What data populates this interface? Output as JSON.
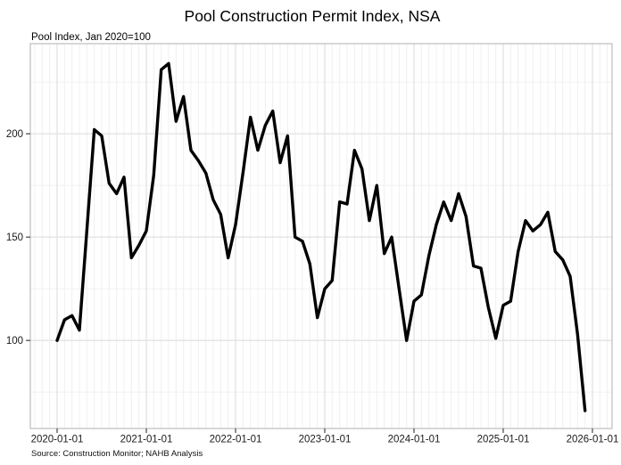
{
  "chart_data": {
    "type": "line",
    "title": "Pool Construction Permit Index, NSA",
    "subtitle": "Pool Index, Jan 2020=100",
    "source": "Source: Construction Monitor; NAHB Analysis",
    "frequency": "monthly",
    "line_color": "#000000",
    "grid": true,
    "legend_position": "none",
    "x": [
      "2020-01",
      "2020-02",
      "2020-03",
      "2020-04",
      "2020-05",
      "2020-06",
      "2020-07",
      "2020-08",
      "2020-09",
      "2020-10",
      "2020-11",
      "2020-12",
      "2021-01",
      "2021-02",
      "2021-03",
      "2021-04",
      "2021-05",
      "2021-06",
      "2021-07",
      "2021-08",
      "2021-09",
      "2021-10",
      "2021-11",
      "2021-12",
      "2022-01",
      "2022-02",
      "2022-03",
      "2022-04",
      "2022-05",
      "2022-06",
      "2022-07",
      "2022-08",
      "2022-09",
      "2022-10",
      "2022-11",
      "2022-12",
      "2023-01",
      "2023-02",
      "2023-03",
      "2023-04",
      "2023-05",
      "2023-06",
      "2023-07",
      "2023-08",
      "2023-09",
      "2023-10",
      "2023-11",
      "2023-12",
      "2024-01",
      "2024-02",
      "2024-03",
      "2024-04",
      "2024-05",
      "2024-06",
      "2024-07",
      "2024-08",
      "2024-09",
      "2024-10",
      "2024-11",
      "2024-12",
      "2025-01",
      "2025-02",
      "2025-03",
      "2025-04",
      "2025-05",
      "2025-06",
      "2025-07",
      "2025-08",
      "2025-09",
      "2025-10",
      "2025-11",
      "2025-12"
    ],
    "values": [
      100,
      110,
      112,
      105,
      153,
      202,
      199,
      176,
      171,
      179,
      140,
      146,
      153,
      180,
      231,
      234,
      206,
      218,
      192,
      187,
      181,
      168,
      161,
      140,
      156,
      181,
      208,
      192,
      204,
      211,
      186,
      199,
      150,
      148,
      137,
      111,
      125,
      129,
      167,
      166,
      192,
      183,
      158,
      175,
      142,
      150,
      125,
      100,
      119,
      122,
      141,
      156,
      167,
      158,
      171,
      160,
      136,
      135,
      116,
      101,
      117,
      119,
      143,
      158,
      153,
      156,
      162,
      143,
      139,
      131,
      103,
      66
    ],
    "x_tick_labels": [
      "2020-01-01",
      "2021-01-01",
      "2022-01-01",
      "2023-01-01",
      "2024-01-01",
      "2025-01-01",
      "2026-01-01"
    ],
    "x_tick_month_index": [
      0,
      12,
      24,
      36,
      48,
      60,
      72
    ],
    "y_ticks": [
      100,
      150,
      200
    ],
    "y_minor_gridlines": [
      75,
      125,
      175,
      225
    ],
    "ylim": [
      57.4,
      243.6
    ],
    "xlim_months": [
      -3.6,
      74.64
    ]
  }
}
